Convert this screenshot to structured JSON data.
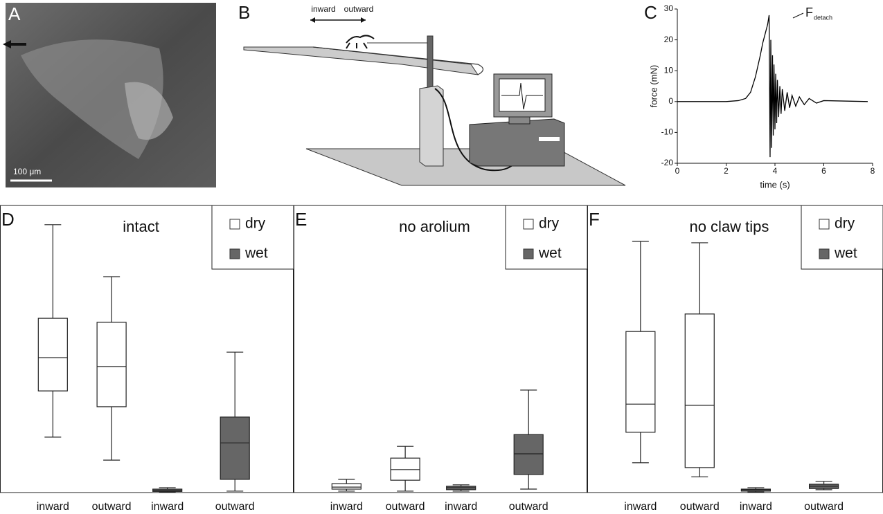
{
  "figure": {
    "a": {
      "label": "A",
      "scale_bar": "100 μm"
    },
    "b": {
      "label": "B",
      "direction_labels": [
        "inward",
        "outward"
      ]
    }
  },
  "chart_data": [
    {
      "type": "line",
      "label": "C",
      "xlabel": "time (s)",
      "ylabel": "force (mN)",
      "annotation": "F",
      "annotation_subscript": "detach",
      "color": "#000000",
      "xlim": [
        0,
        8
      ],
      "xticks": [
        0,
        2,
        4,
        6,
        8
      ],
      "ylim": [
        -20,
        30
      ],
      "yticks": [
        -20,
        -10,
        0,
        10,
        20,
        30
      ],
      "x": [
        0,
        1,
        2,
        2.5,
        2.8,
        3.0,
        3.2,
        3.4,
        3.5,
        3.6,
        3.7,
        3.76,
        3.8,
        3.83,
        3.86,
        3.9,
        3.93,
        3.96,
        4.0,
        4.03,
        4.07,
        4.1,
        4.15,
        4.2,
        4.25,
        4.3,
        4.4,
        4.5,
        4.6,
        4.7,
        4.85,
        5.0,
        5.2,
        5.4,
        5.7,
        6.0,
        7.8
      ],
      "values": [
        0,
        0,
        0,
        0.3,
        1,
        3,
        8,
        15,
        19,
        22,
        25,
        28,
        -18,
        20,
        -15,
        15,
        -11,
        12,
        -9,
        9,
        -7,
        7,
        -5,
        5,
        -4,
        4,
        -3,
        3,
        -2,
        2,
        -1.5,
        1.5,
        -1,
        1,
        -0.5,
        0.3,
        0
      ]
    },
    {
      "type": "box",
      "label": "D",
      "title": "intact",
      "legend": "upper right",
      "ylim": [
        0,
        100
      ],
      "categories": [
        "inward",
        "outward",
        "inward",
        "outward"
      ],
      "series": [
        {
          "name": "dry",
          "color": "#ffffff",
          "boxes": [
            {
              "min": 19.3,
              "q1": 35.4,
              "median": 47.0,
              "q3": 60.7,
              "max": 93.3
            },
            {
              "min": 11.3,
              "q1": 29.9,
              "median": 43.9,
              "q3": 59.3,
              "max": 75.2
            },
            null,
            null
          ]
        },
        {
          "name": "wet",
          "color": "#666666",
          "boxes": [
            null,
            null,
            {
              "min": 0.2,
              "q1": 0.4,
              "median": 0.7,
              "q3": 1.2,
              "max": 1.7
            },
            {
              "min": 0.5,
              "q1": 4.6,
              "median": 17.3,
              "q3": 26.3,
              "max": 48.9
            }
          ]
        }
      ]
    },
    {
      "type": "box",
      "label": "E",
      "title": "no arolium",
      "legend": "upper right",
      "ylim": [
        0,
        100
      ],
      "categories": [
        "inward",
        "outward",
        "inward",
        "outward"
      ],
      "series": [
        {
          "name": "dry",
          "color": "#ffffff",
          "boxes": [
            {
              "min": 0.5,
              "q1": 1.2,
              "median": 1.9,
              "q3": 3.1,
              "max": 4.6
            },
            {
              "min": 0.5,
              "q1": 4.3,
              "median": 8.0,
              "q3": 12.0,
              "max": 16.1
            },
            null,
            null
          ]
        },
        {
          "name": "wet",
          "color": "#666666",
          "boxes": [
            null,
            null,
            {
              "min": 0.5,
              "q1": 1.0,
              "median": 1.7,
              "q3": 2.2,
              "max": 2.7
            },
            {
              "min": 1.2,
              "q1": 6.3,
              "median": 13.5,
              "q3": 20.2,
              "max": 35.7
            }
          ]
        }
      ]
    },
    {
      "type": "box",
      "label": "F",
      "title": "no claw tips",
      "legend": "upper right",
      "ylim": [
        0,
        100
      ],
      "categories": [
        "inward",
        "outward",
        "inward",
        "outward"
      ],
      "series": [
        {
          "name": "dry",
          "color": "#ffffff",
          "boxes": [
            {
              "min": 10.4,
              "q1": 21.0,
              "median": 30.8,
              "q3": 56.1,
              "max": 87.5
            },
            {
              "min": 5.5,
              "q1": 8.7,
              "median": 30.4,
              "q3": 62.2,
              "max": 87.0
            },
            null,
            null
          ]
        },
        {
          "name": "wet",
          "color": "#666666",
          "boxes": [
            null,
            null,
            {
              "min": 0.2,
              "q1": 0.5,
              "median": 1.0,
              "q3": 1.2,
              "max": 1.7
            },
            {
              "min": 1.0,
              "q1": 1.4,
              "median": 2.2,
              "q3": 2.9,
              "max": 3.9
            }
          ]
        }
      ]
    }
  ]
}
